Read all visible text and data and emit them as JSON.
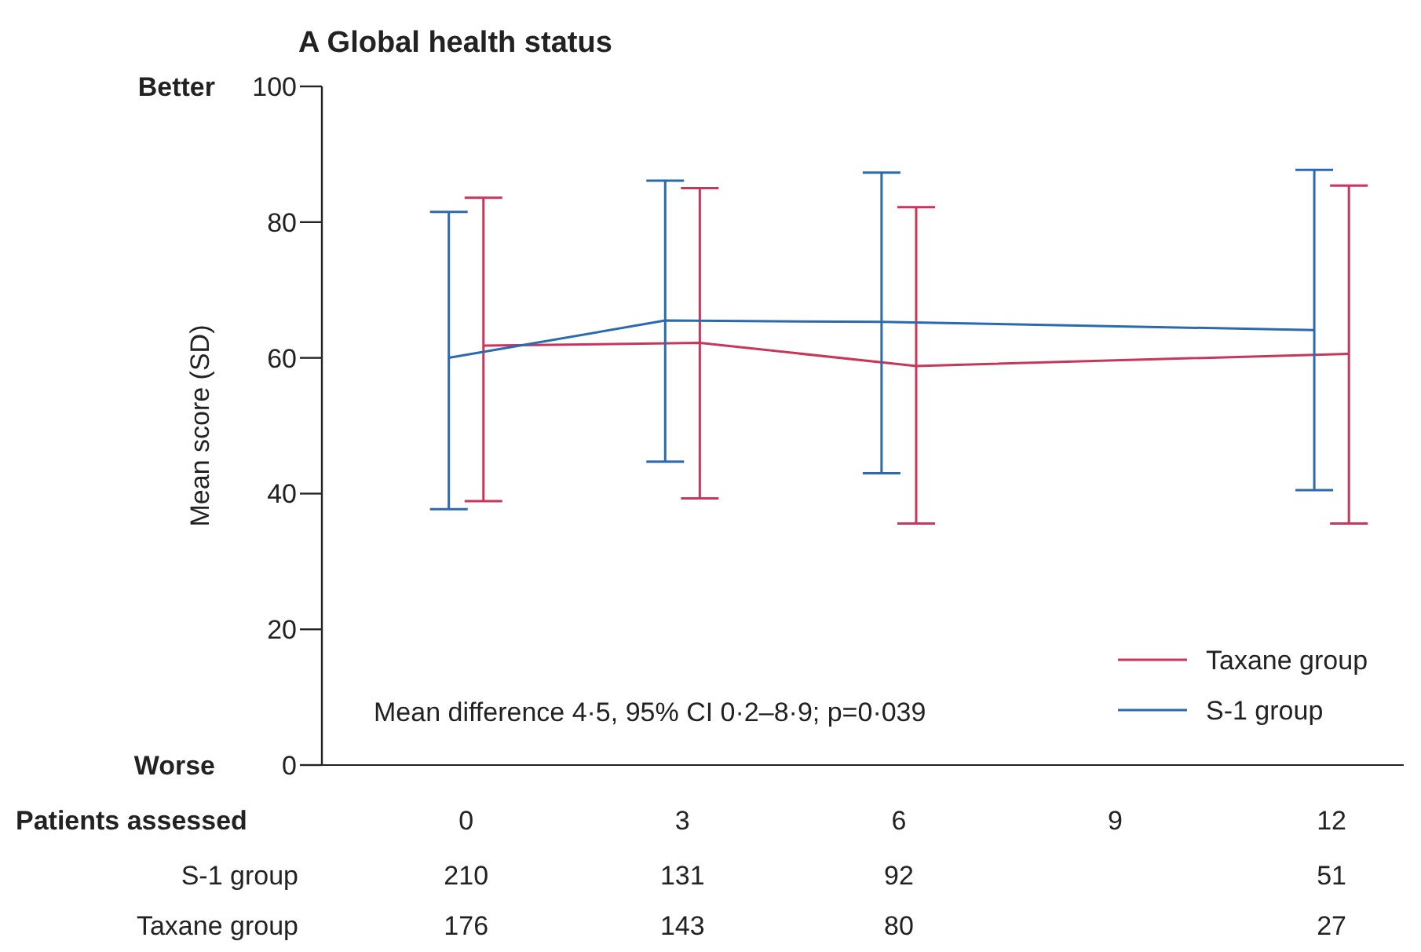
{
  "chart_data": {
    "type": "line",
    "title": "A Global health status",
    "ylabel": "Mean score (SD)",
    "xlim": [
      -2,
      13
    ],
    "xticks": [
      0,
      3,
      6,
      9,
      12
    ],
    "ylim": [
      0,
      100
    ],
    "yticks": [
      0,
      20,
      40,
      60,
      80,
      100
    ],
    "grid": false,
    "legend": "bottom right",
    "marker": "none",
    "line_style": "solid",
    "series": [
      {
        "name": "Taxane group",
        "color": "#c8365a",
        "x": [
          0.24,
          3.24,
          6.24,
          12.24
        ],
        "values": [
          61.8,
          62.2,
          58.8,
          60.6
        ],
        "errors": [
          [
            38.9,
            83.6
          ],
          [
            39.3,
            85
          ],
          [
            35.6,
            82.2
          ],
          [
            35.6,
            85.4
          ]
        ]
      },
      {
        "name": "S-1 group",
        "color": "#2a6ab0",
        "x": [
          -0.24,
          2.76,
          5.76,
          11.76
        ],
        "values": [
          60,
          65.5,
          65.3,
          64.1
        ],
        "errors": [
          [
            37.7,
            81.5
          ],
          [
            44.7,
            86.1
          ],
          [
            43,
            87.3
          ],
          [
            40.5,
            87.7
          ]
        ]
      }
    ],
    "annotations": [
      "Mean difference 4·5, 95% CI 0·2–8·9; p=0·039",
      "Better",
      "Worse",
      "Patients assessed",
      "S-1 group",
      "210",
      "131",
      "92",
      "51",
      "Taxane group",
      "176",
      "143",
      "80",
      "27"
    ]
  }
}
